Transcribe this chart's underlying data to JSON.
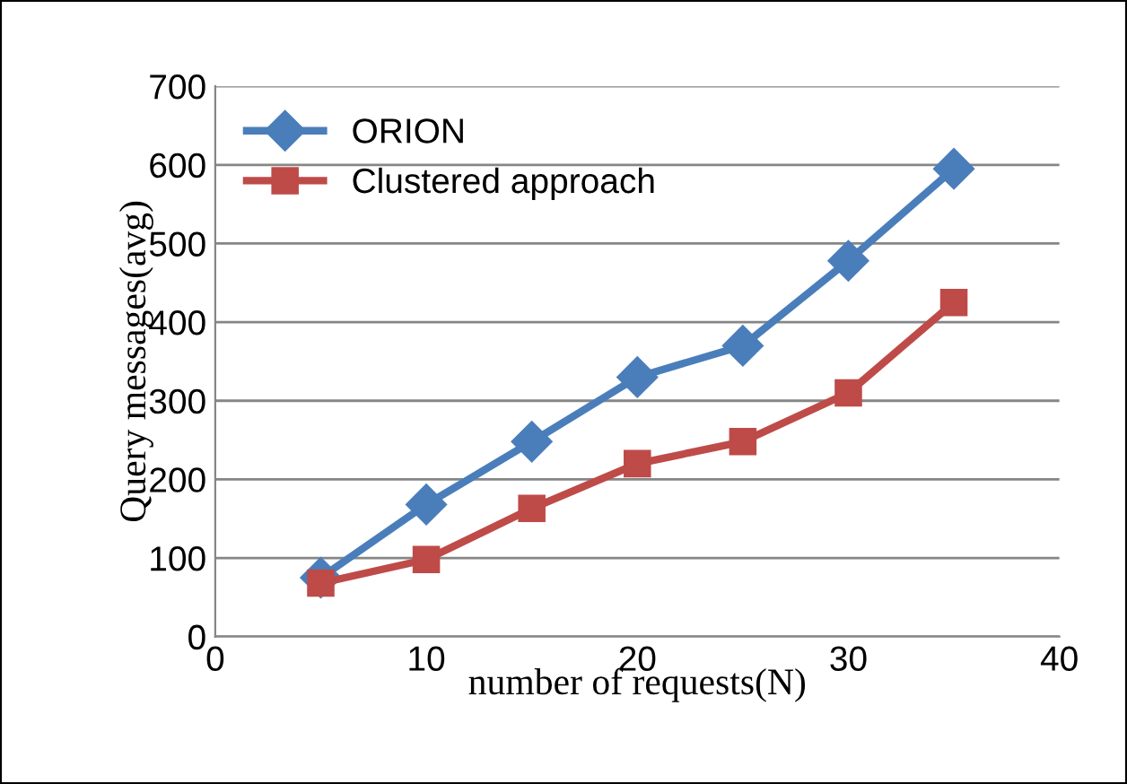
{
  "chart_data": {
    "type": "line",
    "xlabel": "number of requests(N)",
    "ylabel": "Query messages(avg)",
    "x": [
      5,
      10,
      15,
      20,
      25,
      30,
      35
    ],
    "series": [
      {
        "name": "ORION",
        "color": "#4a7ebb",
        "marker": "diamond",
        "values": [
          75,
          168,
          248,
          330,
          370,
          478,
          595
        ]
      },
      {
        "name": "Clustered approach",
        "color": "#be4b48",
        "marker": "square",
        "values": [
          68,
          98,
          163,
          220,
          248,
          310,
          425
        ]
      }
    ],
    "xlim": [
      0,
      40
    ],
    "xticks": [
      0,
      10,
      20,
      30,
      40
    ],
    "ylim": [
      0,
      700
    ],
    "yticks": [
      0,
      100,
      200,
      300,
      400,
      500,
      600,
      700
    ],
    "grid": "y",
    "legend": "top left",
    "line_style": "solid"
  }
}
